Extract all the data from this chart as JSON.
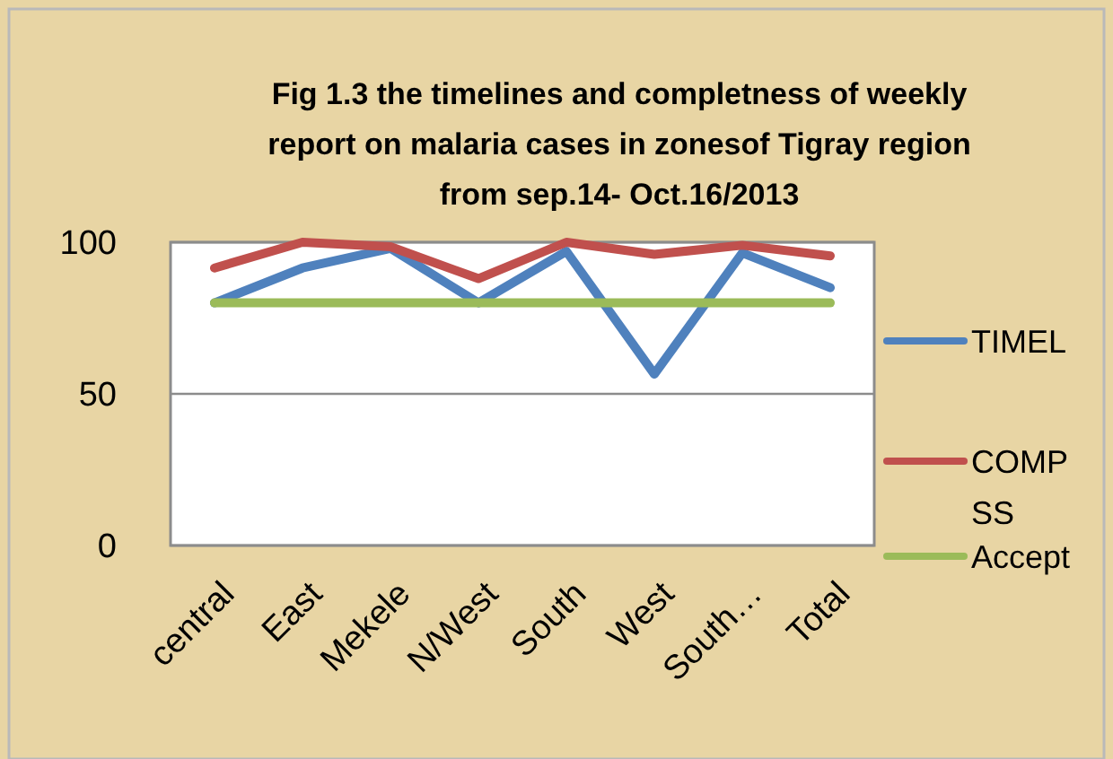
{
  "chart_data": {
    "type": "line",
    "title": "Fig 1.3 the timelines and completness of weekly report on malaria cases in zonesof Tigray region from sep.14- Oct.16/2013",
    "categories": [
      "central",
      "East",
      "Mekele",
      "N/West",
      "South",
      "West",
      "South…",
      "Total"
    ],
    "series": [
      {
        "name": "TIMEL",
        "color": "#4f81bd",
        "values": [
          80,
          91.5,
          98,
          80,
          97,
          56.5,
          96.5,
          85
        ]
      },
      {
        "name": "COMP SS",
        "color": "#c0504d",
        "values": [
          91.5,
          100,
          98.5,
          88,
          100,
          96,
          99,
          95.5
        ]
      },
      {
        "name": "Accept",
        "color": "#9bbb59",
        "values": [
          80,
          80,
          80,
          80,
          80,
          80,
          80,
          80
        ]
      }
    ],
    "ylim": [
      0,
      100
    ],
    "yticks": [
      0,
      50,
      100
    ],
    "grid": "y",
    "legend": "right",
    "marker": "none",
    "line_style": "solid"
  }
}
